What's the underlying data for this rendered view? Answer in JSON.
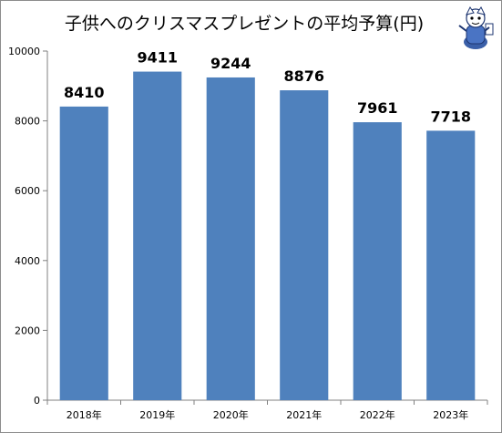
{
  "chart_data": {
    "type": "bar",
    "title": "子供へのクリスマスプレゼントの平均予算(円)",
    "xlabel": "",
    "ylabel": "",
    "categories": [
      "2018年",
      "2019年",
      "2020年",
      "2021年",
      "2022年",
      "2023年"
    ],
    "values": [
      8410,
      9411,
      9244,
      8876,
      7961,
      7718
    ],
    "data_labels": [
      "8410",
      "9411",
      "9244",
      "8876",
      "7961",
      "7718"
    ],
    "ylim": [
      0,
      10000
    ],
    "yticks": [
      0,
      2000,
      4000,
      6000,
      8000,
      10000
    ],
    "ytick_labels": [
      "0",
      "2000",
      "4000",
      "6000",
      "8000",
      "10000"
    ],
    "grid": false,
    "legend": "none",
    "bar_color": "#4f81bd"
  },
  "mascot_icon": "mascot-character-icon"
}
